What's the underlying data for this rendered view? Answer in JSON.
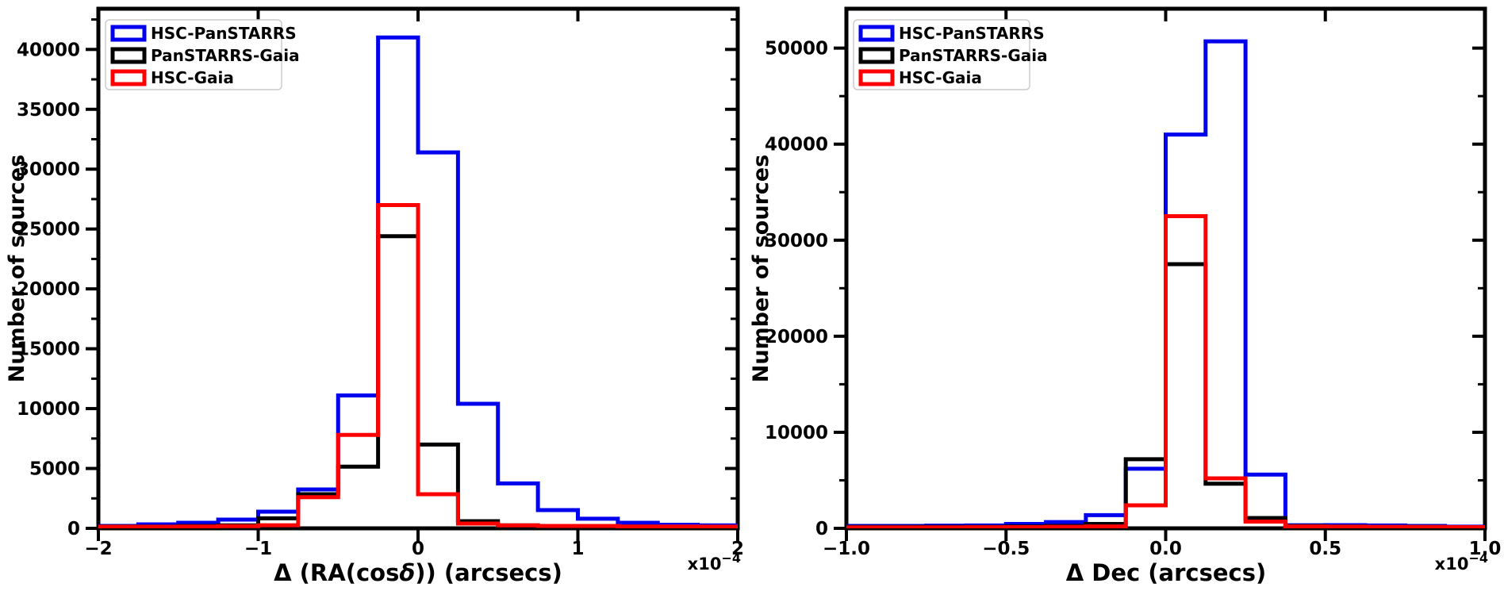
{
  "figure": {
    "background": "#ffffff"
  },
  "colors": {
    "hsc_panstarrs": "#0000EE",
    "panstarrs_gaia": "#000000",
    "hsc_gaia": "#FF0000",
    "legend_border": "#CCCCCC"
  },
  "legend": {
    "entries": [
      {
        "label": "HSC-PanSTARRS",
        "color": "#0000EE"
      },
      {
        "label": "PanSTARRS-Gaia",
        "color": "#000000"
      },
      {
        "label": "HSC-Gaia",
        "color": "#FF0000"
      }
    ]
  },
  "chart_data": [
    {
      "type": "histogram-step",
      "panel": "left",
      "xlabel": "Δ (RA(cosδ)) (arcsecs)",
      "xlabel_parts": [
        {
          "text": "Δ (RA(cos",
          "italic": false
        },
        {
          "text": "δ",
          "italic": true
        },
        {
          "text": ")) (arcsecs)",
          "italic": false
        }
      ],
      "ylabel": "Number of sources",
      "x_scale_label": {
        "base": "x10",
        "exponent": "−4"
      },
      "xlim": [
        -2,
        2
      ],
      "ylim": [
        0,
        43400
      ],
      "xticks": [
        -2,
        -1,
        0,
        1,
        2
      ],
      "xtick_labels": [
        "−2",
        "−1",
        "0",
        "1",
        "2"
      ],
      "yticks": [
        0,
        5000,
        10000,
        15000,
        20000,
        25000,
        30000,
        35000,
        40000
      ],
      "ytick_labels": [
        "0",
        "5000",
        "10000",
        "15000",
        "20000",
        "25000",
        "30000",
        "35000",
        "40000"
      ],
      "ytick_minor_step": 2500,
      "grid": false,
      "legend_position": "upper left",
      "bin_edges": [
        -2,
        -1.75,
        -1.5,
        -1.25,
        -1,
        -0.75,
        -0.5,
        -0.25,
        0,
        0.25,
        0.5,
        0.75,
        1,
        1.25,
        1.5,
        1.75,
        2
      ],
      "series": [
        {
          "name": "HSC-PanSTARRS",
          "color": "#0000EE",
          "values": [
            200,
            330,
            460,
            730,
            1390,
            3250,
            11100,
            41000,
            31400,
            10400,
            3750,
            1520,
            800,
            460,
            300,
            250
          ]
        },
        {
          "name": "PanSTARRS-Gaia",
          "color": "#000000",
          "values": [
            150,
            150,
            200,
            250,
            840,
            2850,
            5150,
            24400,
            7000,
            600,
            250,
            200,
            150,
            150,
            120,
            100
          ]
        },
        {
          "name": "HSC-Gaia",
          "color": "#FF0000",
          "values": [
            130,
            130,
            150,
            180,
            260,
            2600,
            7800,
            27000,
            2850,
            400,
            250,
            200,
            200,
            150,
            150,
            140
          ]
        }
      ]
    },
    {
      "type": "histogram-step",
      "panel": "right",
      "xlabel": "Δ Dec (arcsecs)",
      "xlabel_parts": [
        {
          "text": "Δ Dec (arcsecs)",
          "italic": false
        }
      ],
      "ylabel": "Number of sources",
      "x_scale_label": {
        "base": "x10",
        "exponent": "−4"
      },
      "xlim": [
        -1,
        1
      ],
      "ylim": [
        0,
        54100
      ],
      "xticks": [
        -1,
        -0.5,
        0,
        0.5,
        1
      ],
      "xtick_labels": [
        "−1.0",
        "−0.5",
        "0.0",
        "0.5",
        "1.0"
      ],
      "yticks": [
        0,
        10000,
        20000,
        30000,
        40000,
        50000
      ],
      "ytick_labels": [
        "0",
        "10000",
        "20000",
        "30000",
        "40000",
        "50000"
      ],
      "ytick_minor_step": 5000,
      "grid": false,
      "legend_position": "upper left",
      "bin_edges": [
        -1,
        -0.875,
        -0.75,
        -0.625,
        -0.5,
        -0.375,
        -0.25,
        -0.125,
        0,
        0.125,
        0.25,
        0.375,
        0.5,
        0.625,
        0.75,
        0.875,
        1
      ],
      "series": [
        {
          "name": "HSC-PanSTARRS",
          "color": "#0000EE",
          "values": [
            250,
            250,
            280,
            300,
            450,
            650,
            1370,
            6200,
            41000,
            50700,
            5600,
            320,
            330,
            300,
            250,
            180
          ]
        },
        {
          "name": "PanSTARRS-Gaia",
          "color": "#000000",
          "values": [
            150,
            150,
            150,
            160,
            200,
            250,
            450,
            7200,
            27500,
            4650,
            1070,
            250,
            200,
            150,
            150,
            120
          ]
        },
        {
          "name": "HSC-Gaia",
          "color": "#FF0000",
          "values": [
            100,
            100,
            100,
            110,
            120,
            150,
            200,
            2400,
            32500,
            5200,
            700,
            200,
            180,
            150,
            140,
            120
          ]
        }
      ]
    }
  ]
}
